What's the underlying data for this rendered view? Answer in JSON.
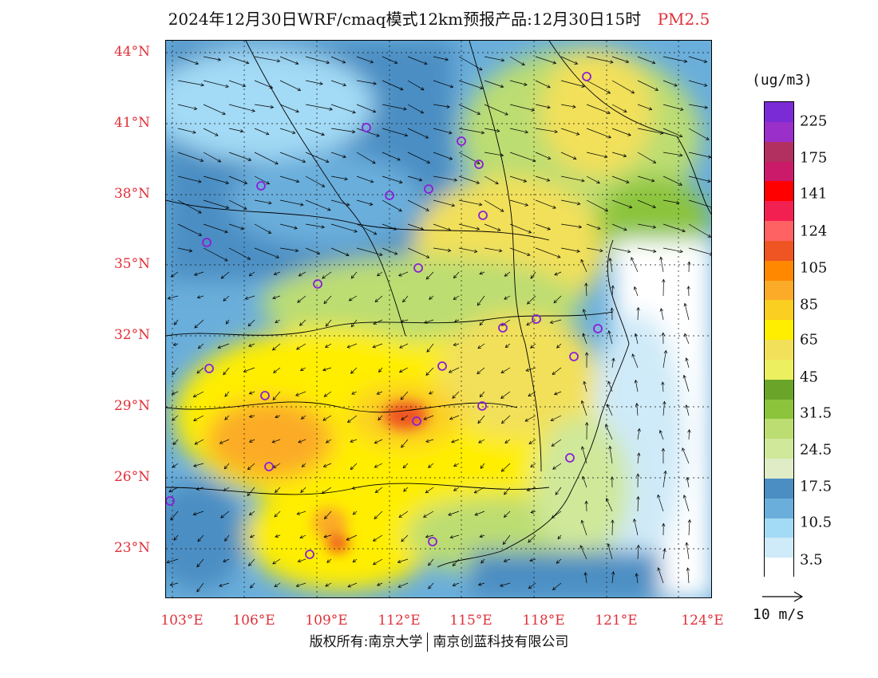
{
  "title": {
    "main": "2024年12月30日WRF/cmaq模式12km预报产品:12月30日15时",
    "variable": "PM2.5"
  },
  "latitude_labels": [
    "44°N",
    "41°N",
    "38°N",
    "35°N",
    "32°N",
    "29°N",
    "26°N",
    "23°N"
  ],
  "longitude_labels": [
    "103°E",
    "106°E",
    "109°E",
    "112°E",
    "115°E",
    "118°E",
    "121°E",
    "124°E"
  ],
  "colorbar": {
    "unit": "(ug/m3)",
    "ticks": [
      "225",
      "175",
      "141",
      "124",
      "105",
      "85",
      "65",
      "45",
      "31.5",
      "24.5",
      "17.5",
      "10.5",
      "3.5"
    ],
    "colors": [
      "#7b2bd6",
      "#9a2fc9",
      "#b23060",
      "#cc1a6a",
      "#ff0000",
      "#f22050",
      "#ff6262",
      "#ee5522",
      "#ff8800",
      "#fbab27",
      "#fbce22",
      "#ffee00",
      "#f2e05a",
      "#ecef60",
      "#6aa52a",
      "#8cc43c",
      "#bcdd72",
      "#cfe89a",
      "#dfecc6",
      "#4b8ec3",
      "#6aaedb",
      "#a3daf5",
      "#cfeaf8",
      "#ffffff"
    ]
  },
  "wind_reference": {
    "label": "10 m/s"
  },
  "copyright": {
    "left": "版权所有:南京大学",
    "right": "南京创蓝科技有限公司"
  },
  "stations_icon": "circle-marker",
  "accent_color": "#e0303a"
}
